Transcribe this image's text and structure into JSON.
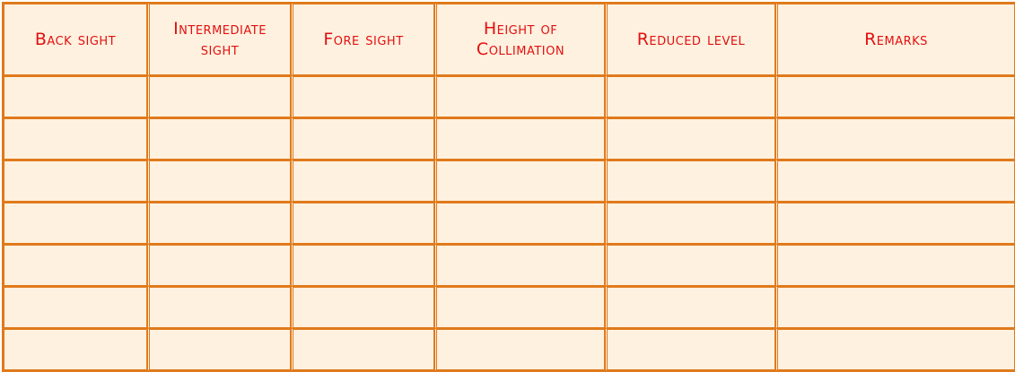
{
  "table": {
    "headers": [
      "Back sight",
      "Intermediate\nsight",
      "Fore sight",
      "Height of\nCollimation",
      "Reduced level",
      "Remarks"
    ],
    "rows": [
      [
        "",
        "",
        "",
        "",
        "",
        ""
      ],
      [
        "",
        "",
        "",
        "",
        "",
        ""
      ],
      [
        "",
        "",
        "",
        "",
        "",
        ""
      ],
      [
        "",
        "",
        "",
        "",
        "",
        ""
      ],
      [
        "",
        "",
        "",
        "",
        "",
        ""
      ],
      [
        "",
        "",
        "",
        "",
        "",
        ""
      ],
      [
        "",
        "",
        "",
        "",
        "",
        ""
      ]
    ]
  },
  "colors": {
    "border": "#e07a1c",
    "fill": "#fff1df",
    "header_text": "#e21010"
  }
}
